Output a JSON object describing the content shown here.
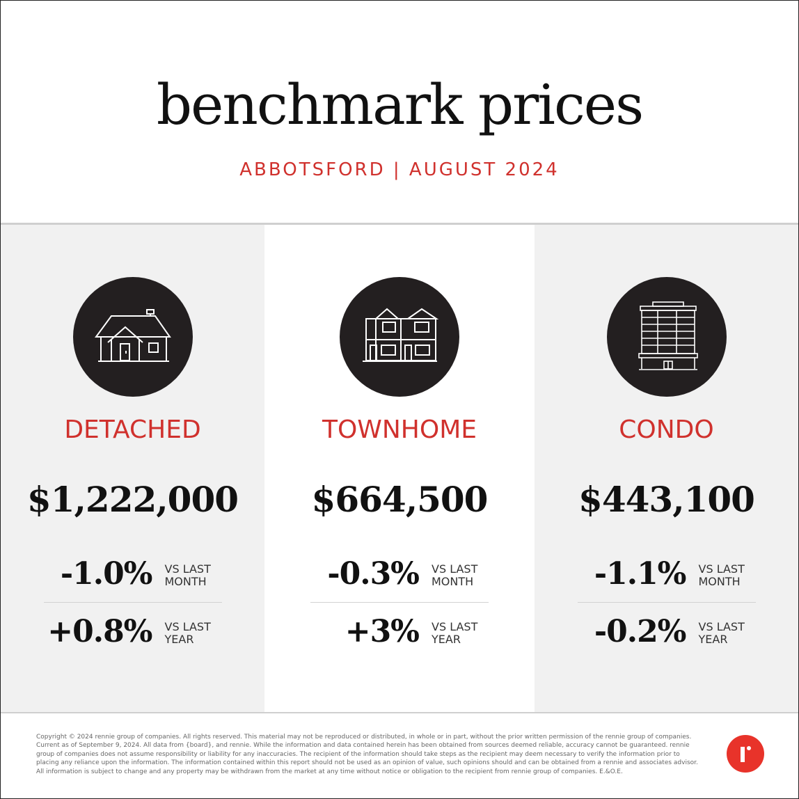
{
  "header": {
    "title": "benchmark prices",
    "subtitle": "ABBOTSFORD | AUGUST 2024"
  },
  "colors": {
    "accent": "#d0312d",
    "icon_bg": "#231f20",
    "panel_bg": "#f1f1f1",
    "logo": "#e8332a"
  },
  "categories": [
    {
      "icon": "detached-house-icon",
      "label": "DETACHED",
      "price": "$1,222,000",
      "month_change": "-1.0%",
      "month_label_1": "VS LAST",
      "month_label_2": "MONTH",
      "year_change": "+0.8%",
      "year_label_1": "VS LAST",
      "year_label_2": "YEAR"
    },
    {
      "icon": "townhome-icon",
      "label": "TOWNHOME",
      "price": "$664,500",
      "month_change": "-0.3%",
      "month_label_1": "VS LAST",
      "month_label_2": "MONTH",
      "year_change": "+3%",
      "year_label_1": "VS LAST",
      "year_label_2": "YEAR"
    },
    {
      "icon": "condo-building-icon",
      "label": "CONDO",
      "price": "$443,100",
      "month_change": "-1.1%",
      "month_label_1": "VS LAST",
      "month_label_2": "MONTH",
      "year_change": "-0.2%",
      "year_label_1": "VS LAST",
      "year_label_2": "YEAR"
    }
  ],
  "footer": {
    "legal": "Copyright © 2024 rennie group of companies. All rights reserved. This material may not be reproduced or distributed, in whole or in part, without the prior written permission of the rennie group of companies. Current as of September 9, 2024. All data from {board}, and rennie. While the information and data contained herein has been obtained from sources deemed reliable, accuracy cannot be guaranteed. rennie group of companies does not assume responsibility or liability for any inaccuracies. The recipient of the information should take steps as the recipient may deem necessary to verify the information prior to placing any reliance upon the information. The information contained within this report should not be used as an opinion of value, such opinions should and can be obtained from a rennie and associates advisor. All information is subject to change and any property may be withdrawn from the market at any time without notice or obligation to the recipient from rennie group of companies. E.&O.E.",
    "logo_icon": "rennie-logo-icon"
  }
}
